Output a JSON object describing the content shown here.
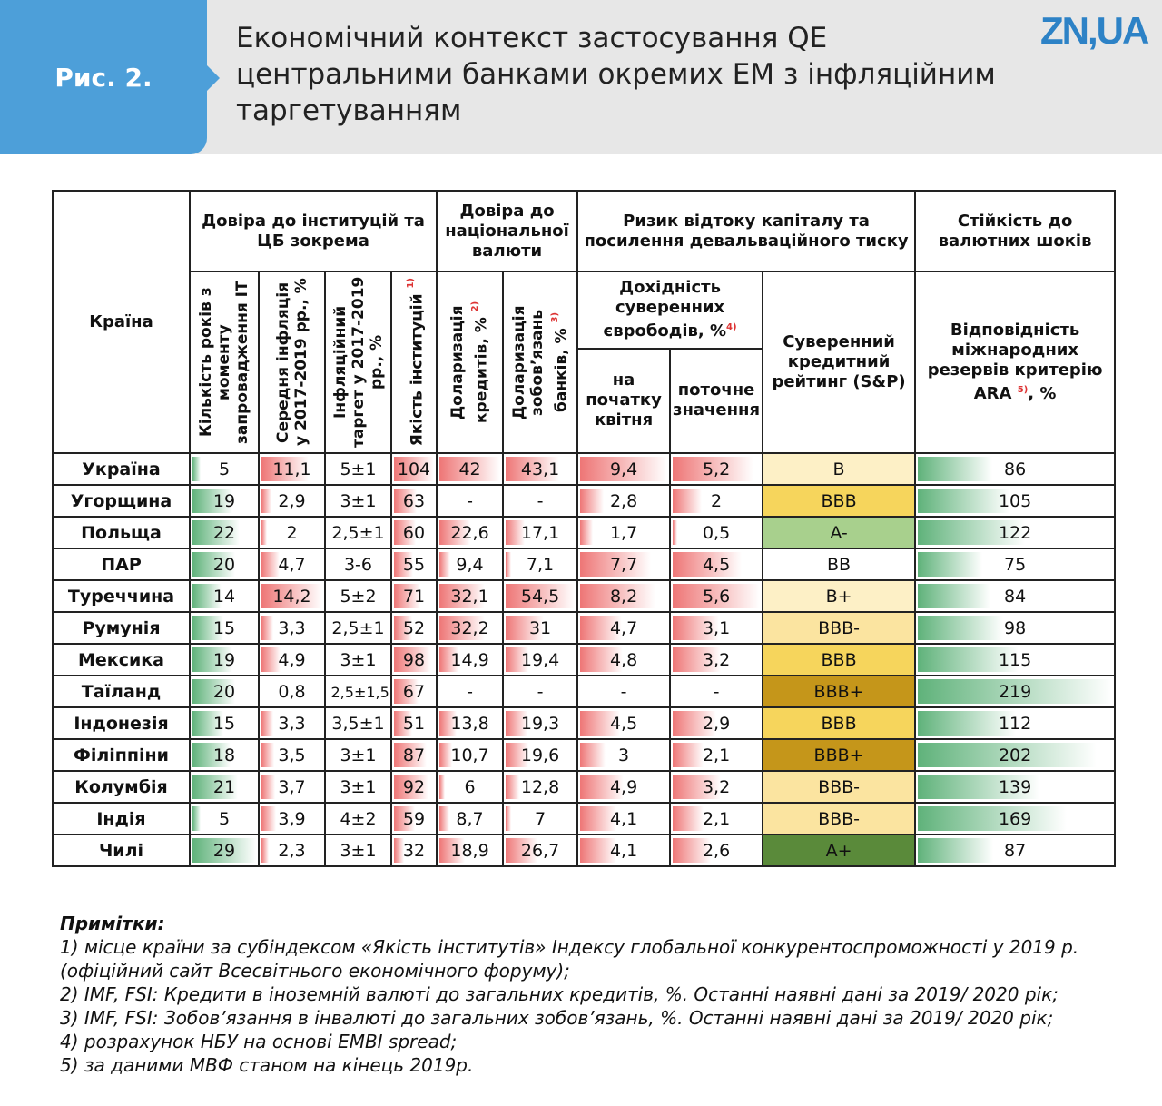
{
  "header": {
    "badge": "Рис. 2.",
    "title": "Економічний контекст застосування QE центральними банками окремих ЕМ з інфляційним таргетуванням",
    "logo": "ZN,UA"
  },
  "table": {
    "country_header": "Країна",
    "groups": [
      "Довіра до інституцій та ЦБ зокрема",
      "Довіра до національної валюти",
      "Ризик відтоку капіталу та посилення девальваційного тиску",
      "Стійкість до валютних шоків"
    ],
    "yield_group": {
      "label": "Дохідність суверенних єврободів, %",
      "note": "4)"
    },
    "columns": [
      {
        "label": "Кількість років з моменту запровадження ІТ",
        "bar": "#5fb27a"
      },
      {
        "label": "Середня інфляція у 2017-2019 рр., %",
        "bar": "#ee7676"
      },
      {
        "label": "Інфляційний таргет у 2017-2019 рр., %"
      },
      {
        "label": "Якість інституцій",
        "note": "1)",
        "bar": "#ee7676"
      },
      {
        "label": "Доларизація кредитів, %",
        "note": "2)",
        "bar": "#ee7676"
      },
      {
        "label": "Доларизація зобов’язань банків, %",
        "note": "3)",
        "bar": "#ee7676"
      },
      {
        "label": "на початку квітня",
        "bar": "#ee7676"
      },
      {
        "label": "поточне значення",
        "bar": "#ee7676"
      },
      {
        "label": "Суверенний кредитний рейтинг (S&P)"
      },
      {
        "label": "Відповідність міжнародних резервів критерію ARA",
        "note": "5)",
        "suffix": ", %",
        "bar": "#5fb27a"
      }
    ],
    "rows": [
      {
        "country": "Україна",
        "cells": [
          "5",
          "11,1",
          "5±1",
          "104",
          "42",
          "43,1",
          "9,4",
          "5,2",
          "B",
          "86"
        ],
        "rating_color": "#fdf0c6"
      },
      {
        "country": "Угорщина",
        "cells": [
          "19",
          "2,9",
          "3±1",
          "63",
          "-",
          "-",
          "2,8",
          "2",
          "BBB",
          "105"
        ],
        "rating_color": "#f6d55c"
      },
      {
        "country": "Польща",
        "cells": [
          "22",
          "2",
          "2,5±1",
          "60",
          "22,6",
          "17,1",
          "1,7",
          "0,5",
          "A-",
          "122"
        ],
        "rating_color": "#a8d08d"
      },
      {
        "country": "ПАР",
        "cells": [
          "20",
          "4,7",
          "3-6",
          "55",
          "9,4",
          "7,1",
          "7,7",
          "4,5",
          "BB",
          "75"
        ],
        "rating_color": "#ffffff"
      },
      {
        "country": "Туреччина",
        "cells": [
          "14",
          "14,2",
          "5±2",
          "71",
          "32,1",
          "54,5",
          "8,2",
          "5,6",
          "B+",
          "84"
        ],
        "rating_color": "#fdf0c6"
      },
      {
        "country": "Румунія",
        "cells": [
          "15",
          "3,3",
          "2,5±1",
          "52",
          "32,2",
          "31",
          "4,7",
          "3,1",
          "BBB-",
          "98"
        ],
        "rating_color": "#fbe4a0"
      },
      {
        "country": "Мексика",
        "cells": [
          "19",
          "4,9",
          "3±1",
          "98",
          "14,9",
          "19,4",
          "4,8",
          "3,2",
          "BBB",
          "115"
        ],
        "rating_color": "#f6d55c"
      },
      {
        "country": "Таїланд",
        "cells": [
          "20",
          "0,8",
          "2,5±1,5",
          "67",
          "-",
          "-",
          "-",
          "-",
          "BBB+",
          "219"
        ],
        "rating_color": "#c5961a"
      },
      {
        "country": "Індонезія",
        "cells": [
          "15",
          "3,3",
          "3,5±1",
          "51",
          "13,8",
          "19,3",
          "4,5",
          "2,9",
          "BBB",
          "112"
        ],
        "rating_color": "#f6d55c"
      },
      {
        "country": "Філіппіни",
        "cells": [
          "18",
          "3,5",
          "3±1",
          "87",
          "10,7",
          "19,6",
          "3",
          "2,1",
          "BBB+",
          "202"
        ],
        "rating_color": "#c5961a"
      },
      {
        "country": "Колумбія",
        "cells": [
          "21",
          "3,7",
          "3±1",
          "92",
          "6",
          "12,8",
          "4,9",
          "3,2",
          "BBB-",
          "139"
        ],
        "rating_color": "#fbe4a0"
      },
      {
        "country": "Індія",
        "cells": [
          "5",
          "3,9",
          "4±2",
          "59",
          "8,7",
          "7",
          "4,1",
          "2,1",
          "BBB-",
          "169"
        ],
        "rating_color": "#fbe4a0"
      },
      {
        "country": "Чилі",
        "cells": [
          "29",
          "2,3",
          "3±1",
          "32",
          "18,9",
          "26,7",
          "4,1",
          "2,6",
          "A+",
          "87"
        ],
        "rating_color": "#5a8a3a"
      }
    ]
  },
  "notes": {
    "title": "Примітки:",
    "lines": [
      "1) місце країни за субіндексом «Якість інститутів» Індексу глобальної конкурентоспроможності у 2019 р.",
      "(офіційний сайт Всесвітнього економічного форуму);",
      "2) IMF, FSI: Кредити в іноземній валюті до загальних кредитів, %. Останні наявні дані за 2019/ 2020 рік;",
      "3) IMF, FSI: Зобов’язання в інвалюті до загальних зобов’язань, %. Останні наявні дані за 2019/ 2020 рік;",
      "4) розрахунок НБУ на основі EMBI spread;",
      "5) за даними МВФ станом на кінець 2019р."
    ]
  }
}
